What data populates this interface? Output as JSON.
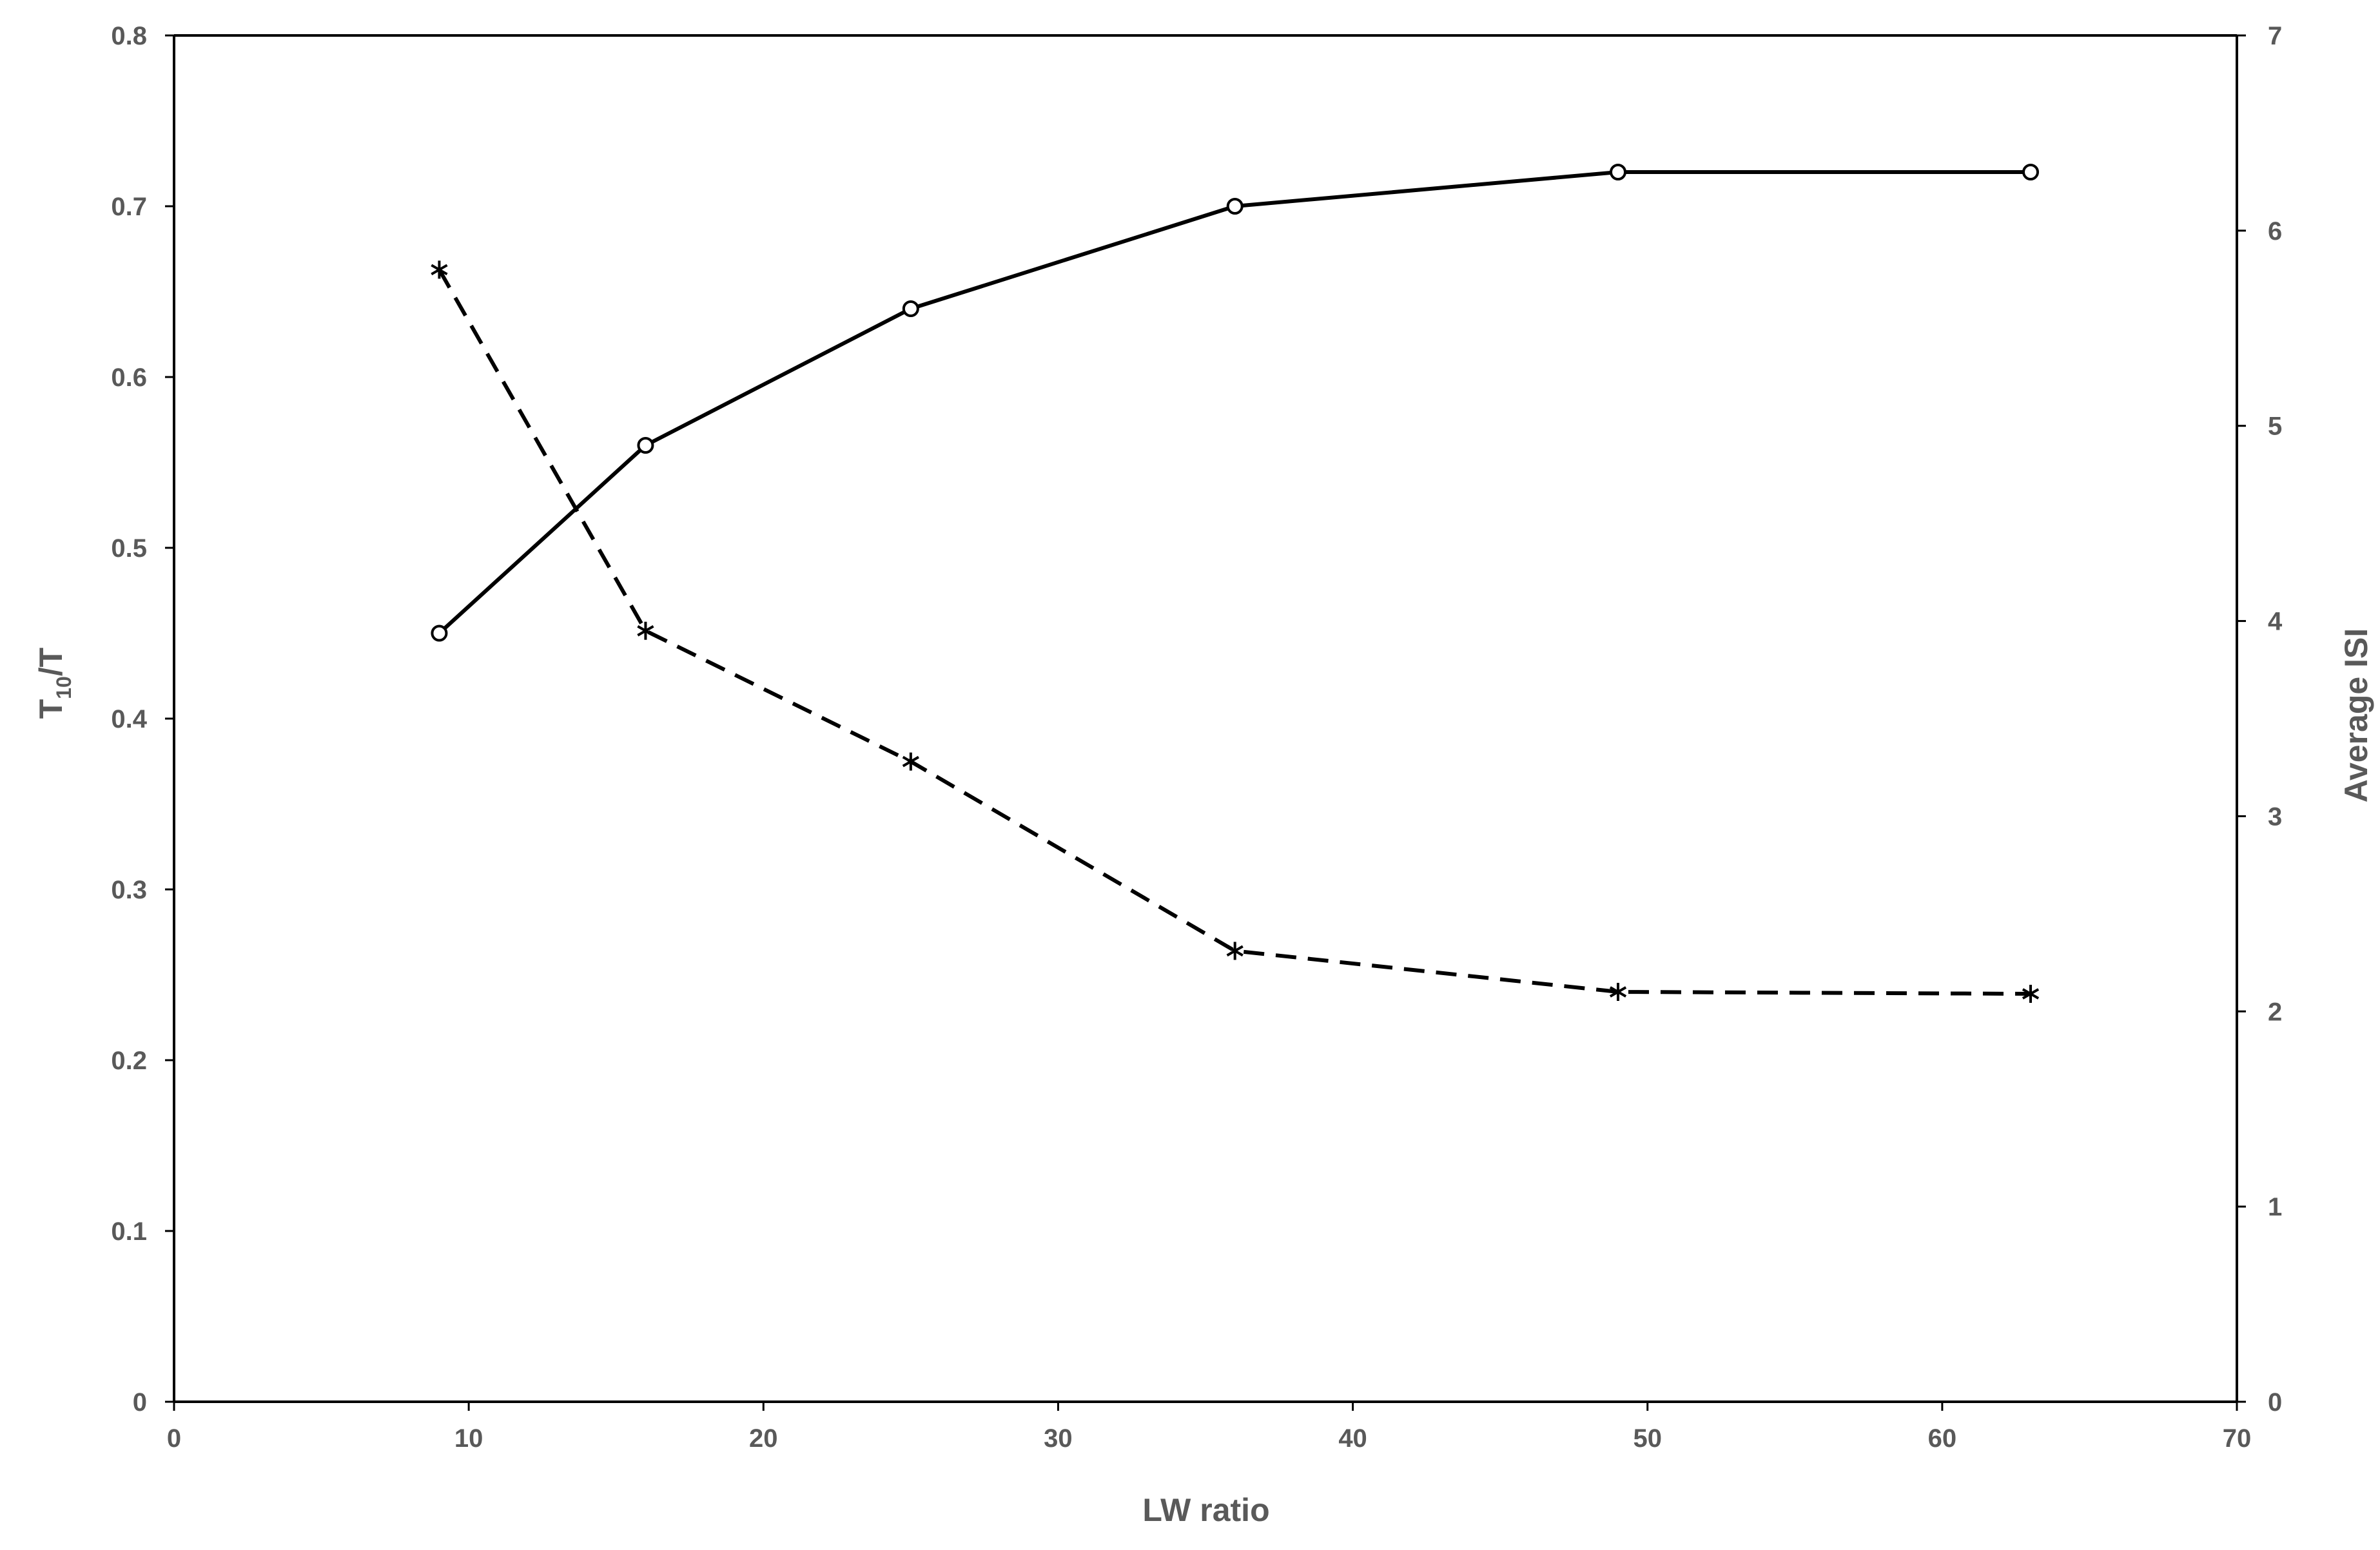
{
  "chart_data": {
    "type": "line",
    "xlabel": "LW ratio",
    "ylabel": {
      "base": "T",
      "subscript": "10",
      "suffix": "/T"
    },
    "ylabel_right": "Average ISI",
    "xlim": [
      0,
      70
    ],
    "ylim": [
      0,
      0.8
    ],
    "ylim_right": [
      0,
      7
    ],
    "x_ticks": [
      "0",
      "10",
      "20",
      "30",
      "40",
      "50",
      "60",
      "70"
    ],
    "y_ticks": [
      "0",
      "0.1",
      "0.2",
      "0.3",
      "0.4",
      "0.5",
      "0.6",
      "0.7",
      "0.8"
    ],
    "y_ticks_right": [
      "0",
      "1",
      "2",
      "3",
      "4",
      "5",
      "6",
      "7"
    ],
    "grid": false,
    "legend": "none",
    "x": [
      9,
      16,
      25,
      36,
      49,
      63
    ],
    "series": [
      {
        "axis": "left",
        "style": "solid",
        "marker": "circle",
        "color": "#000000",
        "values": [
          0.45,
          0.56,
          0.64,
          0.7,
          0.72,
          0.72
        ]
      },
      {
        "axis": "right",
        "style": "dashed",
        "marker": "asterisk",
        "color": "#000000",
        "values": [
          5.8,
          3.95,
          3.28,
          2.31,
          2.1,
          2.09
        ]
      }
    ]
  }
}
